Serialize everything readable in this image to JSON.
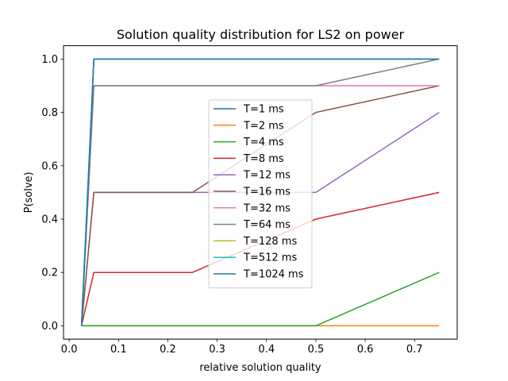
{
  "chart_data": {
    "type": "line",
    "title": "Solution quality distribution for LS2 on power",
    "xlabel": "relative solution quality",
    "ylabel": "P(solve)",
    "xlim": [
      -0.0115,
      0.7865
    ],
    "ylim": [
      -0.05,
      1.05
    ],
    "xticks": [
      0.0,
      0.1,
      0.2,
      0.3,
      0.4,
      0.5,
      0.6,
      0.7
    ],
    "xtick_labels": [
      "0.0",
      "0.1",
      "0.2",
      "0.3",
      "0.4",
      "0.5",
      "0.6",
      "0.7"
    ],
    "yticks": [
      0.0,
      0.2,
      0.4,
      0.6,
      0.8,
      1.0
    ],
    "ytick_labels": [
      "0.0",
      "0.2",
      "0.4",
      "0.6",
      "0.8",
      "1.0"
    ],
    "x": [
      0.025,
      0.05,
      0.25,
      0.5,
      0.75
    ],
    "legend_placement": "center",
    "grid": false,
    "series": [
      {
        "name": "T=1 ms",
        "color": "#1f77b4",
        "values": [
          0.0,
          1.0,
          1.0,
          1.0,
          1.0
        ]
      },
      {
        "name": "T=2 ms",
        "color": "#ff7f0e",
        "values": [
          0.0,
          0.0,
          0.0,
          0.0,
          0.0
        ]
      },
      {
        "name": "T=4 ms",
        "color": "#2ca02c",
        "values": [
          0.0,
          0.0,
          0.0,
          0.0,
          0.2
        ]
      },
      {
        "name": "T=8 ms",
        "color": "#d62728",
        "values": [
          0.0,
          0.2,
          0.2,
          0.4,
          0.5
        ]
      },
      {
        "name": "T=12 ms",
        "color": "#9467bd",
        "values": [
          0.0,
          0.5,
          0.5,
          0.5,
          0.8
        ]
      },
      {
        "name": "T=16 ms",
        "color": "#8c564b",
        "values": [
          0.0,
          0.5,
          0.5,
          0.8,
          0.9
        ]
      },
      {
        "name": "T=32 ms",
        "color": "#e377c2",
        "values": [
          0.0,
          0.9,
          0.9,
          0.9,
          0.9
        ]
      },
      {
        "name": "T=64 ms",
        "color": "#7f7f7f",
        "values": [
          0.0,
          0.9,
          0.9,
          0.9,
          1.0
        ]
      },
      {
        "name": "T=128 ms",
        "color": "#bcbd22",
        "values": [
          0.0,
          1.0,
          1.0,
          1.0,
          1.0
        ]
      },
      {
        "name": "T=512 ms",
        "color": "#17becf",
        "values": [
          0.0,
          1.0,
          1.0,
          1.0,
          1.0
        ]
      },
      {
        "name": "T=1024 ms",
        "color": "#1f77b4",
        "values": [
          0.0,
          1.0,
          1.0,
          1.0,
          1.0
        ]
      }
    ]
  }
}
